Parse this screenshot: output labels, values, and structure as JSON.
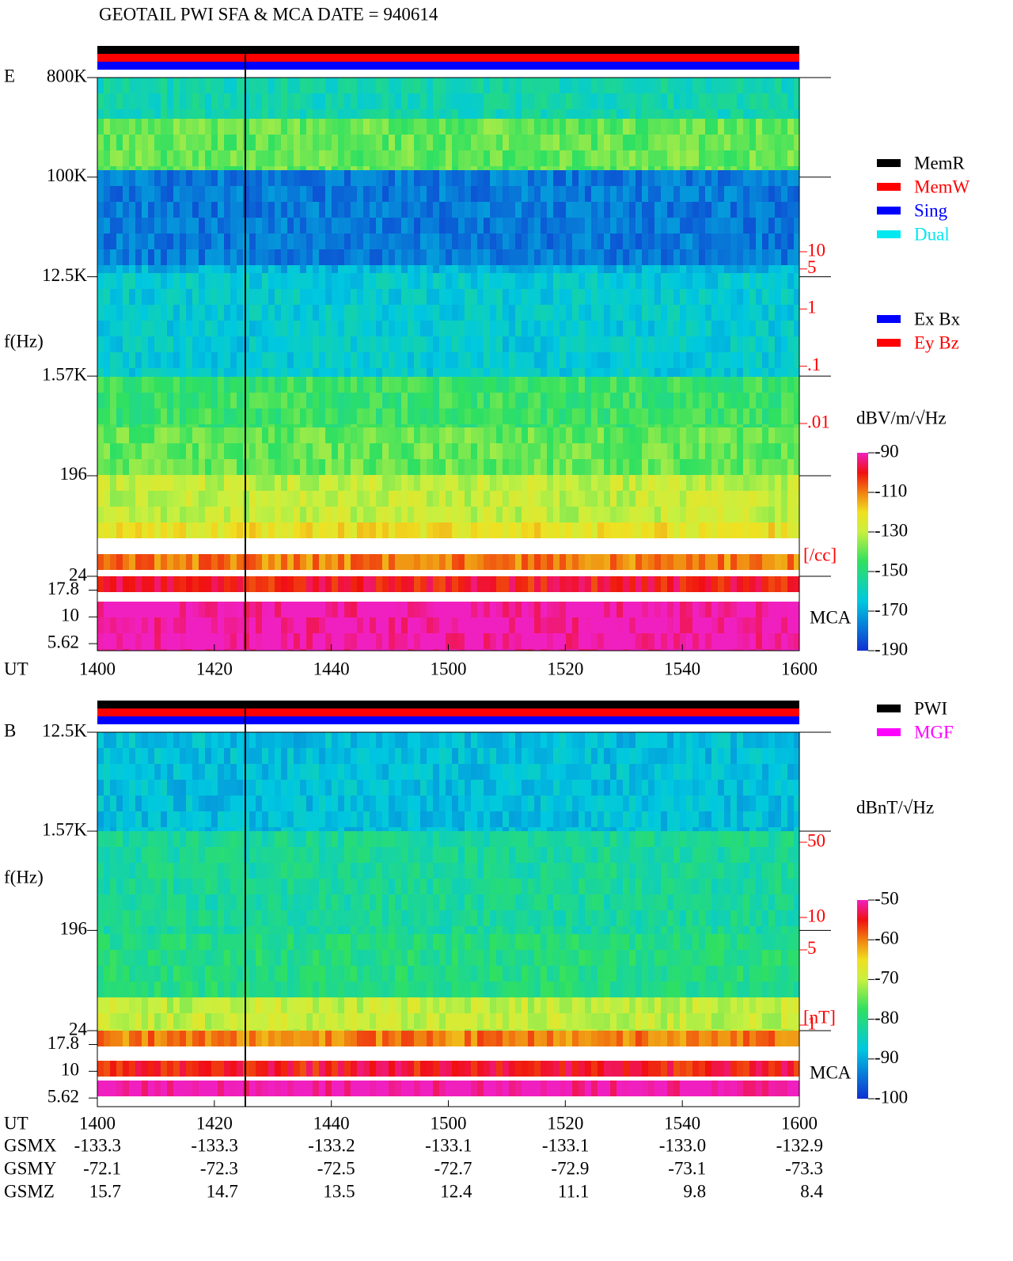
{
  "title": "GEOTAIL  PWI SFA & MCA   DATE = 940614",
  "chart_data": [
    {
      "type": "spectrogram",
      "panel_label": "E",
      "ylabel": "f(Hz)",
      "xlabel": "UT",
      "categories": [
        "1400",
        "1420",
        "1440",
        "1500",
        "1520",
        "1540",
        "1600"
      ],
      "log_y": true,
      "ylim": [
        24,
        800000
      ],
      "yticks": [
        {
          "value": 800000,
          "label": "800K"
        },
        {
          "value": 100000,
          "label": "100K"
        },
        {
          "value": 12500,
          "label": "12.5K"
        },
        {
          "value": 1570,
          "label": "1.57K"
        },
        196,
        24
      ],
      "mca_label": "MCA",
      "mca_ticks": [
        17.8,
        10,
        5.62
      ],
      "y2label": "[/cc]",
      "y2lim": [
        0.01,
        10
      ],
      "y2ticks": [
        10,
        5,
        1,
        {
          "value": 0.1,
          "label": ".1"
        },
        {
          "value": 0.01,
          "label": ".01"
        }
      ],
      "colorbar_label": "dBV/m/√Hz",
      "clim": [
        -190,
        -90
      ],
      "cticks": [
        -90,
        -110,
        -130,
        -150,
        -170,
        -190
      ],
      "legend": [
        {
          "name": "MemR",
          "color": "#000000"
        },
        {
          "name": "MemW",
          "color": "#ff0000"
        },
        {
          "name": "Sing",
          "color": "#0000ff"
        },
        {
          "name": "Dual",
          "color": "#00e8f0"
        }
      ],
      "legend2": [
        {
          "name": "Ex Bx",
          "color": "#0000ff"
        },
        {
          "name": "Ey Bz",
          "color": "#ff0000"
        }
      ]
    },
    {
      "type": "spectrogram",
      "panel_label": "B",
      "ylabel": "f(Hz)",
      "xlabel": "UT",
      "categories": [
        "1400",
        "1420",
        "1440",
        "1500",
        "1520",
        "1540",
        "1600"
      ],
      "log_y": true,
      "ylim": [
        24,
        12500
      ],
      "yticks": [
        {
          "value": 12500,
          "label": "12.5K"
        },
        {
          "value": 1570,
          "label": "1.57K"
        },
        196,
        24
      ],
      "mca_label": "MCA",
      "mca_ticks": [
        17.8,
        10,
        5.62
      ],
      "y2label": "[nT]",
      "y2lim": [
        1,
        50
      ],
      "y2ticks": [
        50,
        10,
        5,
        1
      ],
      "colorbar_label": "dBnT/√Hz",
      "clim": [
        -100,
        -50
      ],
      "cticks": [
        -50,
        -60,
        -70,
        -80,
        -90,
        -100
      ],
      "legend": [
        {
          "name": "PWI",
          "color": "#000000"
        },
        {
          "name": "MGF",
          "color": "#ff00ff"
        }
      ],
      "orbit": [
        {
          "name": "GSMX",
          "values": [
            "-133.3",
            "-133.3",
            "-133.2",
            "-133.1",
            "-133.1",
            "-133.0",
            "-132.9"
          ]
        },
        {
          "name": "GSMY",
          "values": [
            "-72.1",
            "-72.3",
            "-72.5",
            "-72.7",
            "-72.9",
            "-73.1",
            "-73.3"
          ]
        },
        {
          "name": "GSMZ",
          "values": [
            "15.7",
            "14.7",
            "13.5",
            "12.4",
            "11.1",
            "9.8",
            "8.4"
          ]
        }
      ]
    }
  ]
}
